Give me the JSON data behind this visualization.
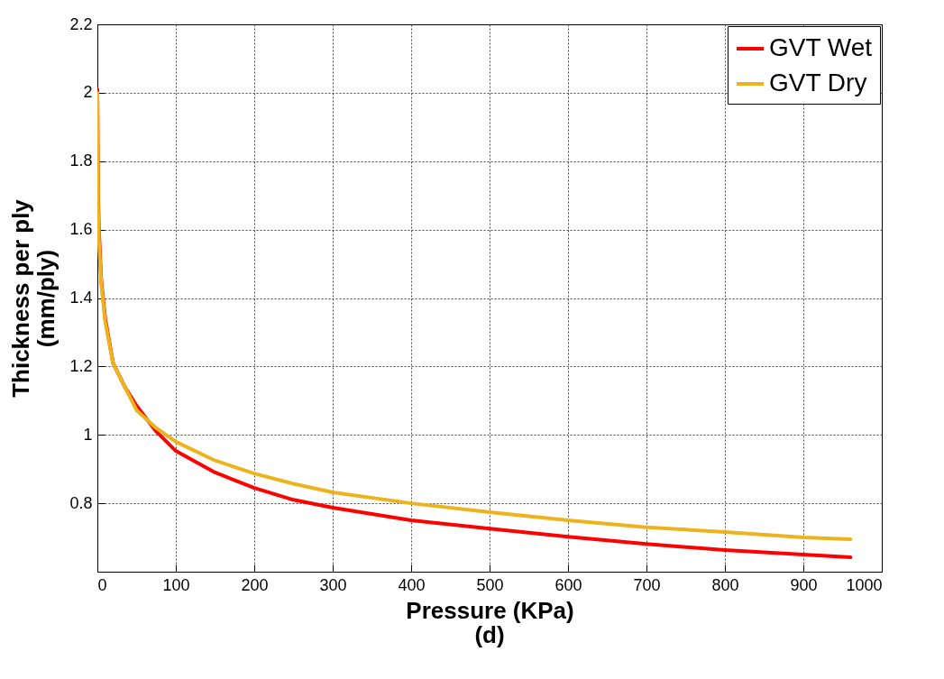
{
  "chart_data": {
    "type": "line",
    "xlabel": "Pressure (KPa)",
    "ylabel": "Thickness per ply (mm/ply)",
    "annotations": [
      "(d)"
    ],
    "xlim": [
      0,
      1000
    ],
    "ylim": [
      0.6,
      2.2
    ],
    "xticks": [
      0,
      100,
      200,
      300,
      400,
      500,
      600,
      700,
      800,
      900,
      1000
    ],
    "yticks": [
      0.8,
      1,
      1.2,
      1.4,
      1.6,
      1.8,
      2,
      2.2
    ],
    "grid": true,
    "legend": "top right",
    "line_style": "solid",
    "marker": "none",
    "series": [
      {
        "name": "GVT Wet",
        "color": "#ff0000",
        "x": [
          0,
          1,
          2,
          5,
          10,
          20,
          35,
          50,
          75,
          100,
          150,
          200,
          250,
          300,
          400,
          500,
          600,
          700,
          800,
          900,
          960
        ],
        "values": [
          2.01,
          1.7,
          1.6,
          1.45,
          1.34,
          1.21,
          1.14,
          1.085,
          1.01,
          0.953,
          0.89,
          0.845,
          0.81,
          0.787,
          0.75,
          0.726,
          0.702,
          0.681,
          0.663,
          0.65,
          0.642
        ]
      },
      {
        "name": "GVT Dry",
        "color": "#ecb31c",
        "x": [
          0,
          1,
          2,
          5,
          10,
          20,
          35,
          50,
          75,
          100,
          150,
          200,
          250,
          300,
          400,
          500,
          600,
          700,
          800,
          900,
          960
        ],
        "values": [
          2.0,
          1.65,
          1.57,
          1.44,
          1.33,
          1.21,
          1.14,
          1.072,
          1.02,
          0.98,
          0.925,
          0.887,
          0.857,
          0.832,
          0.8,
          0.774,
          0.75,
          0.73,
          0.716,
          0.7,
          0.695
        ]
      }
    ]
  }
}
